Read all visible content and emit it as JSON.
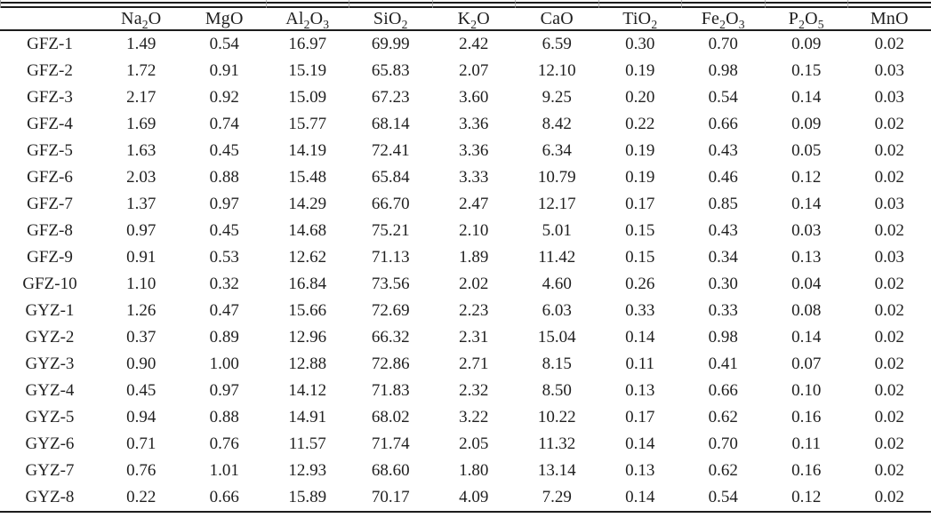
{
  "page": {
    "background": "#ffffff",
    "rule_color": "#1c1c1c",
    "text_color": "#1f1f1f"
  },
  "table": {
    "corner_label": "",
    "headers": [
      "Na_2O",
      "MgO",
      "Al_2O_3",
      "SiO_2",
      "K_2O",
      "CaO",
      "TiO_2",
      "Fe_2O_3",
      "P_2O_5",
      "MnO"
    ],
    "rows": [
      {
        "sample": "GFZ-1",
        "values": [
          "1.49",
          "0.54",
          "16.97",
          "69.99",
          "2.42",
          "6.59",
          "0.30",
          "0.70",
          "0.09",
          "0.02"
        ]
      },
      {
        "sample": "GFZ-2",
        "values": [
          "1.72",
          "0.91",
          "15.19",
          "65.83",
          "2.07",
          "12.10",
          "0.19",
          "0.98",
          "0.15",
          "0.03"
        ]
      },
      {
        "sample": "GFZ-3",
        "values": [
          "2.17",
          "0.92",
          "15.09",
          "67.23",
          "3.60",
          "9.25",
          "0.20",
          "0.54",
          "0.14",
          "0.03"
        ]
      },
      {
        "sample": "GFZ-4",
        "values": [
          "1.69",
          "0.74",
          "15.77",
          "68.14",
          "3.36",
          "8.42",
          "0.22",
          "0.66",
          "0.09",
          "0.02"
        ]
      },
      {
        "sample": "GFZ-5",
        "values": [
          "1.63",
          "0.45",
          "14.19",
          "72.41",
          "3.36",
          "6.34",
          "0.19",
          "0.43",
          "0.05",
          "0.02"
        ]
      },
      {
        "sample": "GFZ-6",
        "values": [
          "2.03",
          "0.88",
          "15.48",
          "65.84",
          "3.33",
          "10.79",
          "0.19",
          "0.46",
          "0.12",
          "0.02"
        ]
      },
      {
        "sample": "GFZ-7",
        "values": [
          "1.37",
          "0.97",
          "14.29",
          "66.70",
          "2.47",
          "12.17",
          "0.17",
          "0.85",
          "0.14",
          "0.03"
        ]
      },
      {
        "sample": "GFZ-8",
        "values": [
          "0.97",
          "0.45",
          "14.68",
          "75.21",
          "2.10",
          "5.01",
          "0.15",
          "0.43",
          "0.03",
          "0.02"
        ]
      },
      {
        "sample": "GFZ-9",
        "values": [
          "0.91",
          "0.53",
          "12.62",
          "71.13",
          "1.89",
          "11.42",
          "0.15",
          "0.34",
          "0.13",
          "0.03"
        ]
      },
      {
        "sample": "GFZ-10",
        "values": [
          "1.10",
          "0.32",
          "16.84",
          "73.56",
          "2.02",
          "4.60",
          "0.26",
          "0.30",
          "0.04",
          "0.02"
        ]
      },
      {
        "sample": "GYZ-1",
        "values": [
          "1.26",
          "0.47",
          "15.66",
          "72.69",
          "2.23",
          "6.03",
          "0.33",
          "0.33",
          "0.08",
          "0.02"
        ]
      },
      {
        "sample": "GYZ-2",
        "values": [
          "0.37",
          "0.89",
          "12.96",
          "66.32",
          "2.31",
          "15.04",
          "0.14",
          "0.98",
          "0.14",
          "0.02"
        ]
      },
      {
        "sample": "GYZ-3",
        "values": [
          "0.90",
          "1.00",
          "12.88",
          "72.86",
          "2.71",
          "8.15",
          "0.11",
          "0.41",
          "0.07",
          "0.02"
        ]
      },
      {
        "sample": "GYZ-4",
        "values": [
          "0.45",
          "0.97",
          "14.12",
          "71.83",
          "2.32",
          "8.50",
          "0.13",
          "0.66",
          "0.10",
          "0.02"
        ]
      },
      {
        "sample": "GYZ-5",
        "values": [
          "0.94",
          "0.88",
          "14.91",
          "68.02",
          "3.22",
          "10.22",
          "0.17",
          "0.62",
          "0.16",
          "0.02"
        ]
      },
      {
        "sample": "GYZ-6",
        "values": [
          "0.71",
          "0.76",
          "11.57",
          "71.74",
          "2.05",
          "11.32",
          "0.14",
          "0.70",
          "0.11",
          "0.02"
        ]
      },
      {
        "sample": "GYZ-7",
        "values": [
          "0.76",
          "1.01",
          "12.93",
          "68.60",
          "1.80",
          "13.14",
          "0.13",
          "0.62",
          "0.16",
          "0.02"
        ]
      },
      {
        "sample": "GYZ-8",
        "values": [
          "0.22",
          "0.66",
          "15.89",
          "70.17",
          "4.09",
          "7.29",
          "0.14",
          "0.54",
          "0.12",
          "0.02"
        ]
      }
    ]
  }
}
